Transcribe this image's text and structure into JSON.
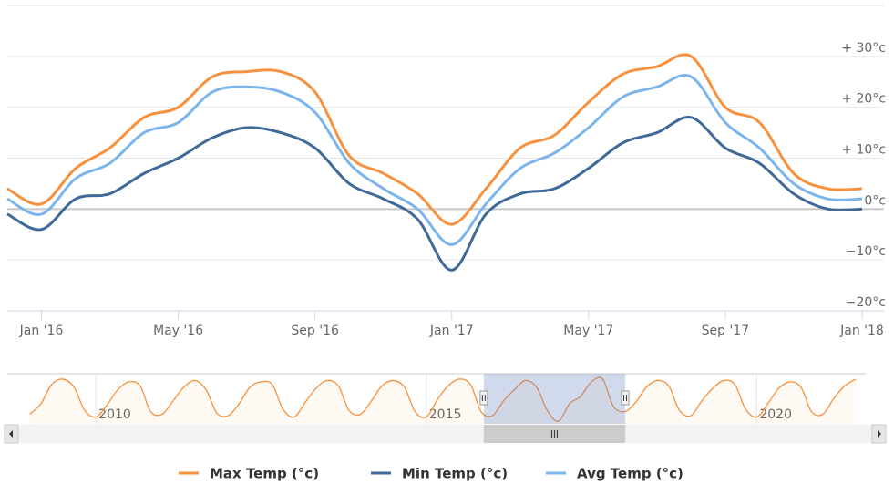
{
  "chart_data": [
    {
      "type": "line",
      "categories": [
        null,
        "Jan '16",
        null,
        null,
        null,
        "May '16",
        null,
        null,
        null,
        "Sep '16",
        null,
        null,
        null,
        "Jan '17",
        null,
        null,
        null,
        "May '17",
        null,
        null,
        null,
        "Sep '17",
        null,
        null,
        null,
        "Jan '18"
      ],
      "series": [
        {
          "name": "Max Temp (°c)",
          "color": "#f7913d",
          "values": [
            4,
            1,
            8,
            12,
            18,
            20,
            26,
            27,
            27,
            23,
            10.5,
            7,
            3,
            -3,
            4,
            12,
            14.5,
            21,
            26.5,
            28,
            30,
            20,
            17,
            7,
            4,
            4
          ]
        },
        {
          "name": "Min Temp (°c)",
          "color": "#3f6a98",
          "values": [
            -1,
            -4,
            2,
            3,
            7,
            10,
            14,
            16,
            15,
            12,
            5,
            2,
            -2,
            -12,
            -1,
            3,
            4,
            8,
            13,
            15,
            18,
            12,
            9,
            3,
            0,
            0
          ]
        },
        {
          "name": "Avg Temp (°c)",
          "color": "#7cb5ec",
          "values": [
            2,
            -1,
            6,
            9,
            15,
            17,
            23,
            24,
            23,
            19,
            9,
            4,
            0,
            -7,
            1,
            8,
            11,
            16,
            22,
            24,
            26,
            17,
            12,
            5,
            2,
            2
          ]
        }
      ],
      "ylim": [
        -20,
        40
      ],
      "yticks": [
        {
          "value": -20,
          "label": "−20°c"
        },
        {
          "value": -10,
          "label": "−10°c"
        },
        {
          "value": 0,
          "label": "0°c"
        },
        {
          "value": 10,
          "label": "+ 10°c"
        },
        {
          "value": 20,
          "label": "+ 20°c"
        },
        {
          "value": 30,
          "label": "+ 30°c"
        },
        {
          "value": 40,
          "label": ""
        }
      ],
      "grid": true
    },
    {
      "type": "area",
      "color": "#f7913d",
      "x": [
        2009,
        2009.17,
        2009.33,
        2009.5,
        2009.67,
        2009.83,
        2010,
        2010.17,
        2010.33,
        2010.5,
        2010.67,
        2010.83,
        2011,
        2011.17,
        2011.33,
        2011.5,
        2011.67,
        2011.83,
        2012,
        2012.17,
        2012.33,
        2012.5,
        2012.67,
        2012.83,
        2013,
        2013.17,
        2013.33,
        2013.5,
        2013.67,
        2013.83,
        2014,
        2014.17,
        2014.33,
        2014.5,
        2014.67,
        2014.83,
        2015,
        2015.17,
        2015.33,
        2015.5,
        2015.67,
        2015.83,
        2016,
        2016.17,
        2016.33,
        2016.5,
        2016.67,
        2016.83,
        2017,
        2017.17,
        2017.33,
        2017.5,
        2017.67,
        2017.83,
        2018,
        2018.17,
        2018.33,
        2018.5,
        2018.67,
        2018.83,
        2019,
        2019.17,
        2019.33,
        2019.5,
        2019.67,
        2019.83,
        2020,
        2020.17,
        2020.33,
        2020.5,
        2020.67,
        2020.83,
        2021,
        2021.17,
        2021.33,
        2021.5
      ],
      "values": [
        2,
        10,
        24,
        28,
        22,
        5,
        0,
        9,
        20,
        26,
        23,
        4,
        2,
        12,
        22,
        27,
        20,
        3,
        1,
        10,
        22,
        26,
        24,
        6,
        0,
        11,
        21,
        27,
        23,
        5,
        2,
        12,
        23,
        27,
        22,
        4,
        0,
        13,
        23,
        28,
        24,
        4,
        1,
        12,
        20,
        27,
        22,
        5,
        -3,
        10,
        15,
        26,
        28,
        8,
        4,
        11,
        22,
        27,
        23,
        5,
        1,
        12,
        21,
        27,
        24,
        6,
        0,
        10,
        21,
        26,
        22,
        4,
        2,
        14,
        23,
        28
      ],
      "xlim": [
        2008.66,
        2021.65
      ],
      "xticks": [
        2010,
        2015,
        2020
      ],
      "ylim": [
        -5,
        32
      ],
      "selection": [
        2015.87,
        2018.01
      ]
    }
  ]
}
